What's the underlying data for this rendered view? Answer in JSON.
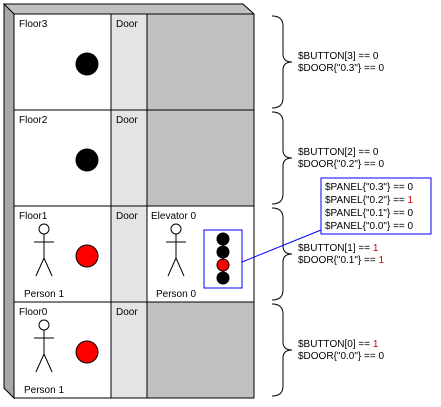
{
  "floors": [
    {
      "label": "Floor3",
      "door_label": "Door",
      "button_on": false,
      "has_elevator": false,
      "person": null,
      "vars": [
        {
          "lhs": "$BUTTON[3] == ",
          "rhs": "0",
          "highlight": false
        },
        {
          "lhs": "$DOOR{\"0.3\"} == ",
          "rhs": "0",
          "highlight": false
        }
      ]
    },
    {
      "label": "Floor2",
      "door_label": "Door",
      "button_on": false,
      "has_elevator": false,
      "person": null,
      "vars": [
        {
          "lhs": "$BUTTON[2] == ",
          "rhs": "0",
          "highlight": false
        },
        {
          "lhs": "$DOOR{\"0.2\"} == ",
          "rhs": "0",
          "highlight": false
        }
      ]
    },
    {
      "label": "Floor1",
      "door_label": "Door",
      "button_on": true,
      "has_elevator": true,
      "elevator_label": "Elevator 0",
      "elevator_person": "Person 0",
      "person": "Person 1",
      "vars": [
        {
          "lhs": "$BUTTON[1] == ",
          "rhs": "1",
          "highlight": true
        },
        {
          "lhs": "$DOOR{\"0.1\"} == ",
          "rhs": "1",
          "highlight": true
        }
      ]
    },
    {
      "label": "Floor0",
      "door_label": "Door",
      "button_on": true,
      "has_elevator": false,
      "person": "Person 1",
      "vars": [
        {
          "lhs": "$BUTTON[0] == ",
          "rhs": "1",
          "highlight": true
        },
        {
          "lhs": "$DOOR{\"0.0\"} == ",
          "rhs": "0",
          "highlight": false
        }
      ]
    }
  ],
  "panel": {
    "lights": [
      false,
      false,
      true,
      false
    ],
    "vars": [
      {
        "lhs": "$PANEL{\"0.3\"} == ",
        "rhs": "0",
        "highlight": false
      },
      {
        "lhs": "$PANEL{\"0.2\"} == ",
        "rhs": "1",
        "highlight": true
      },
      {
        "lhs": "$PANEL{\"0.1\"} == ",
        "rhs": "0",
        "highlight": false
      },
      {
        "lhs": "$PANEL{\"0.0\"} == ",
        "rhs": "0",
        "highlight": false
      }
    ]
  },
  "colors": {
    "building_side": "#c0c0c0",
    "shaft": "#c0c0c0",
    "door": "#e4e4e4",
    "button_on": "#ff0000",
    "button_off": "#000000",
    "value_highlight": "#e00000",
    "callout": "#0000ff"
  }
}
